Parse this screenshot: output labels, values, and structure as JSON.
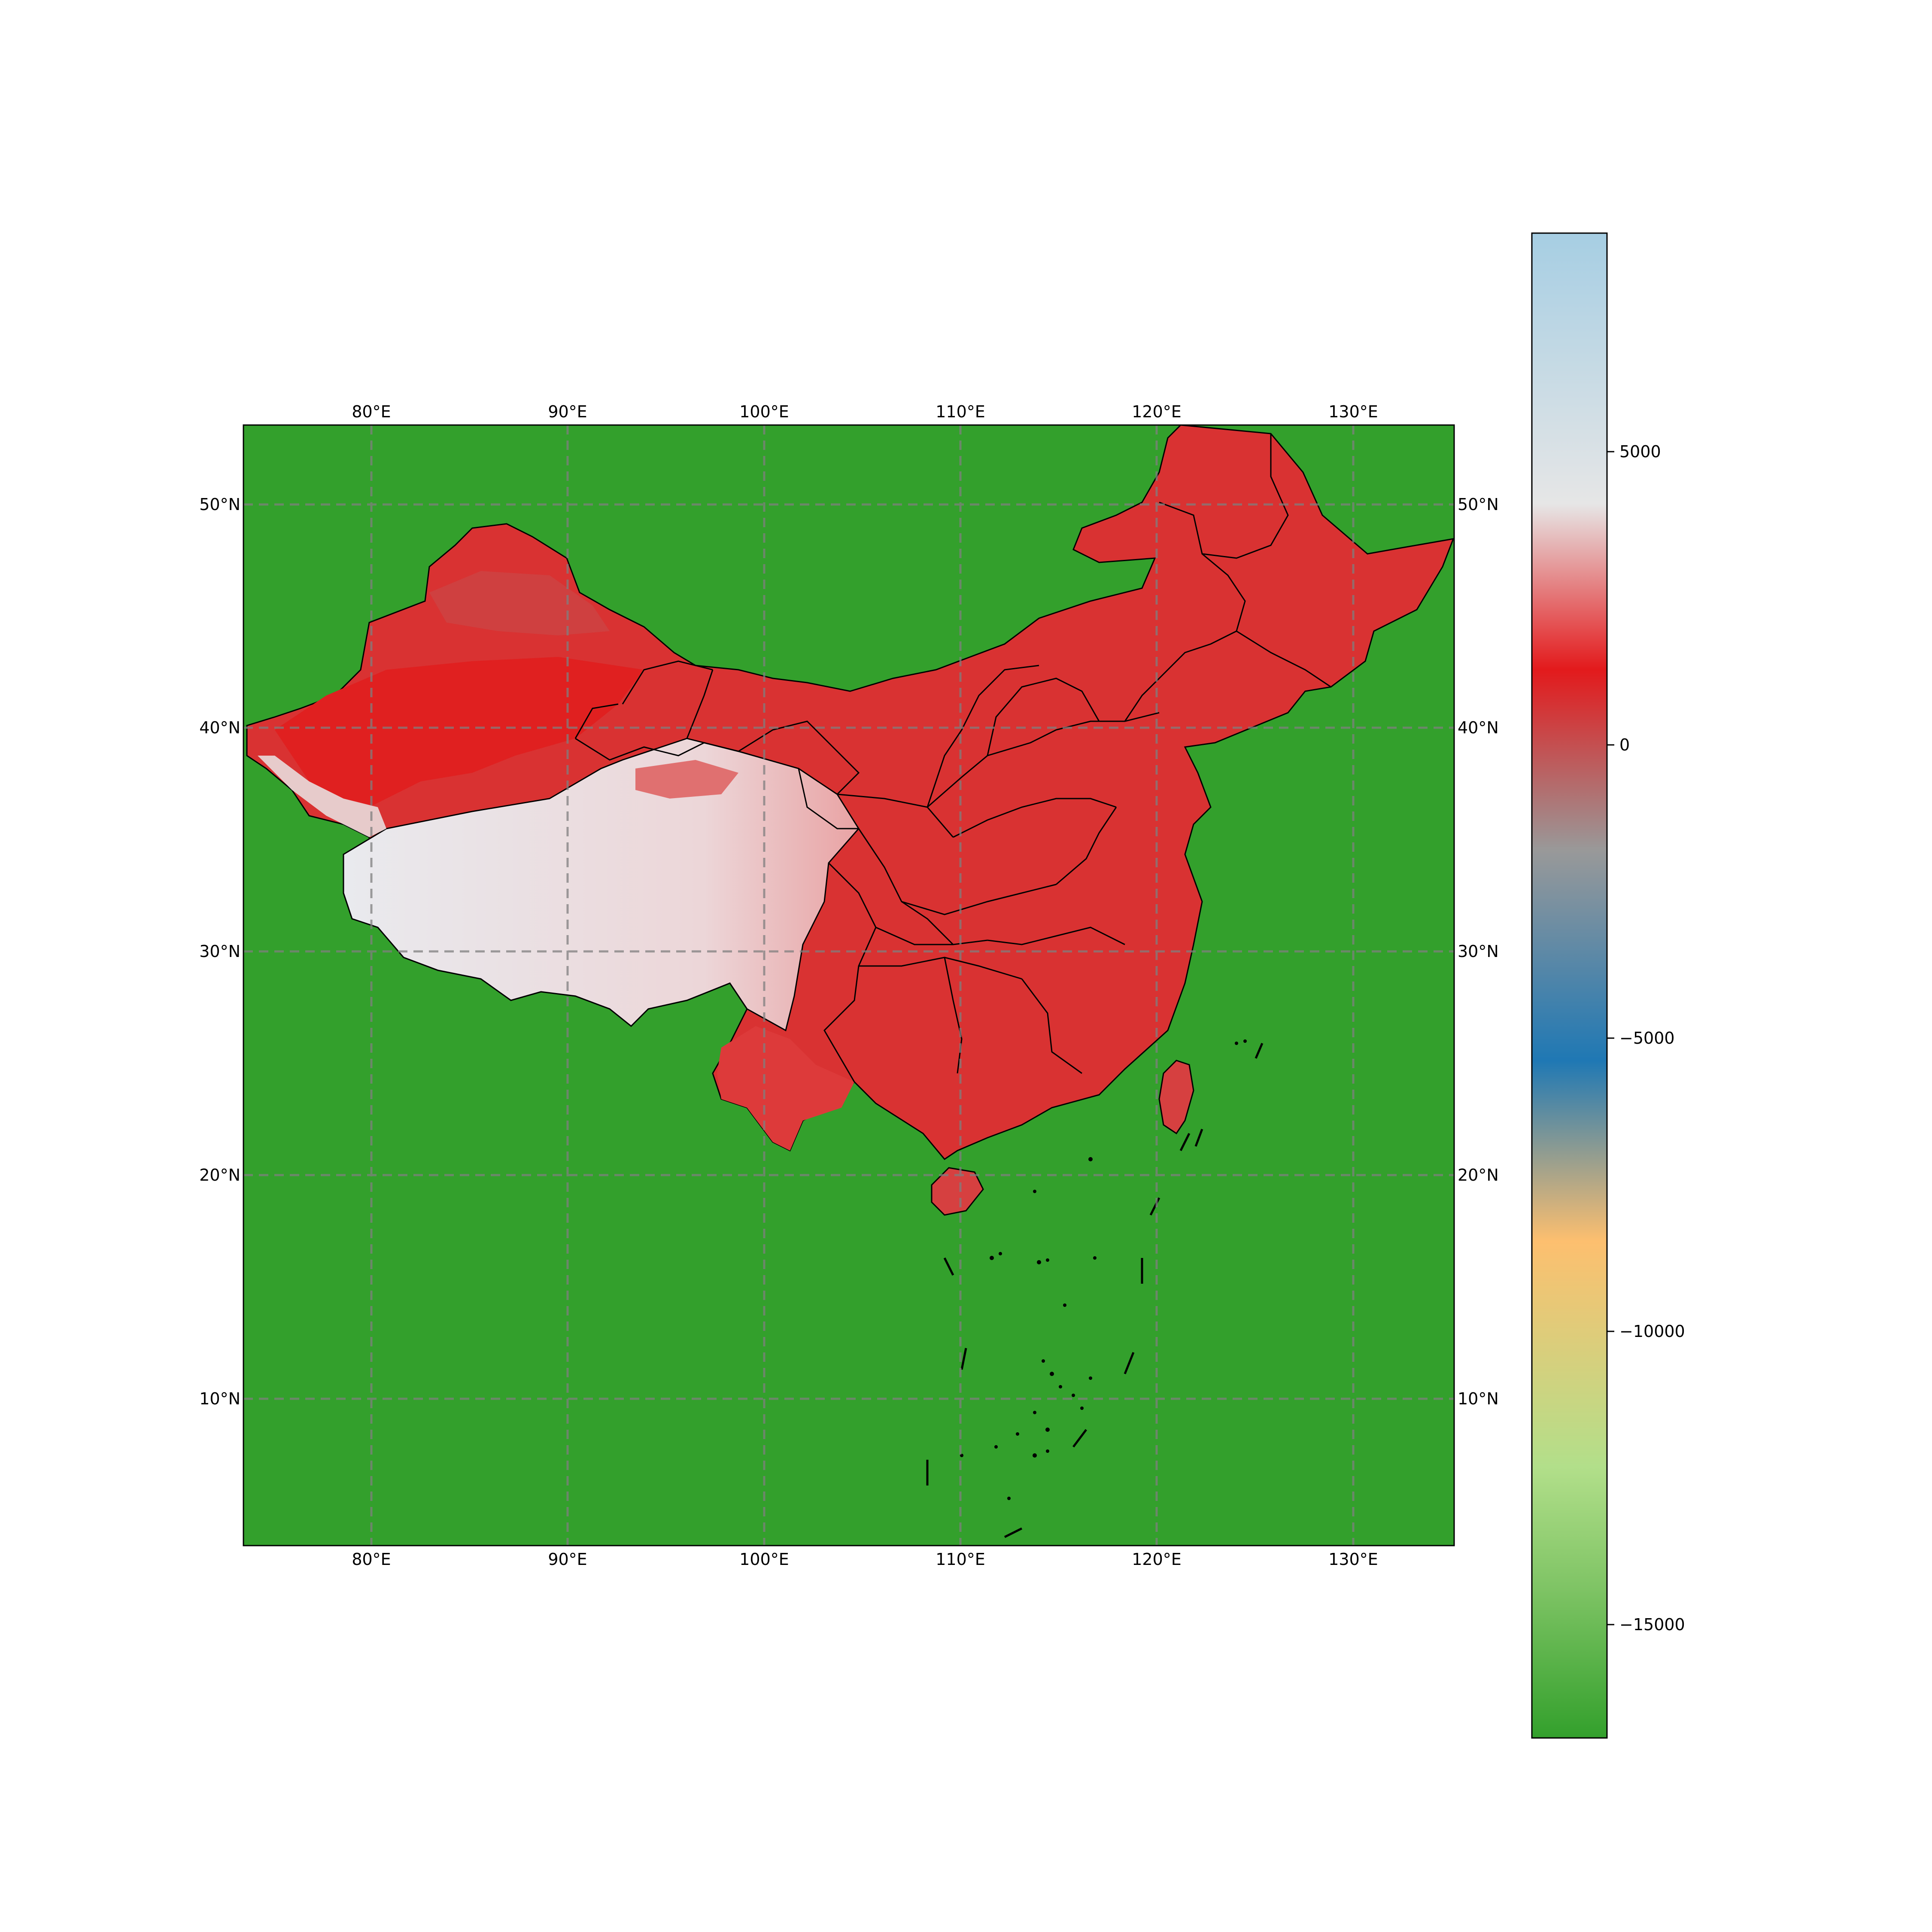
{
  "map": {
    "lon_ticks": [
      "80°E",
      "90°E",
      "100°E",
      "110°E",
      "120°E",
      "130°E"
    ],
    "lat_ticks": [
      "50°N",
      "40°N",
      "30°N",
      "20°N",
      "10°N"
    ],
    "lon_range": [
      73.5,
      135.0
    ],
    "lat_range": [
      3.5,
      53.5
    ],
    "ocean_color": "#33a02c",
    "gridlines": true,
    "gridline_style": "dashed"
  },
  "colorbar": {
    "ticks": [
      "5000",
      "0",
      "−5000",
      "−10000",
      "−15000"
    ],
    "tick_values": [
      5000,
      0,
      -5000,
      -10000,
      -15000
    ],
    "range": [
      -17000,
      8500
    ],
    "colors": [
      "#33a02c",
      "#b2df8a",
      "#fdbf6f",
      "#1f78b4",
      "#999999",
      "#e31a1c",
      "#e8e8e8",
      "#a6cee3"
    ]
  }
}
